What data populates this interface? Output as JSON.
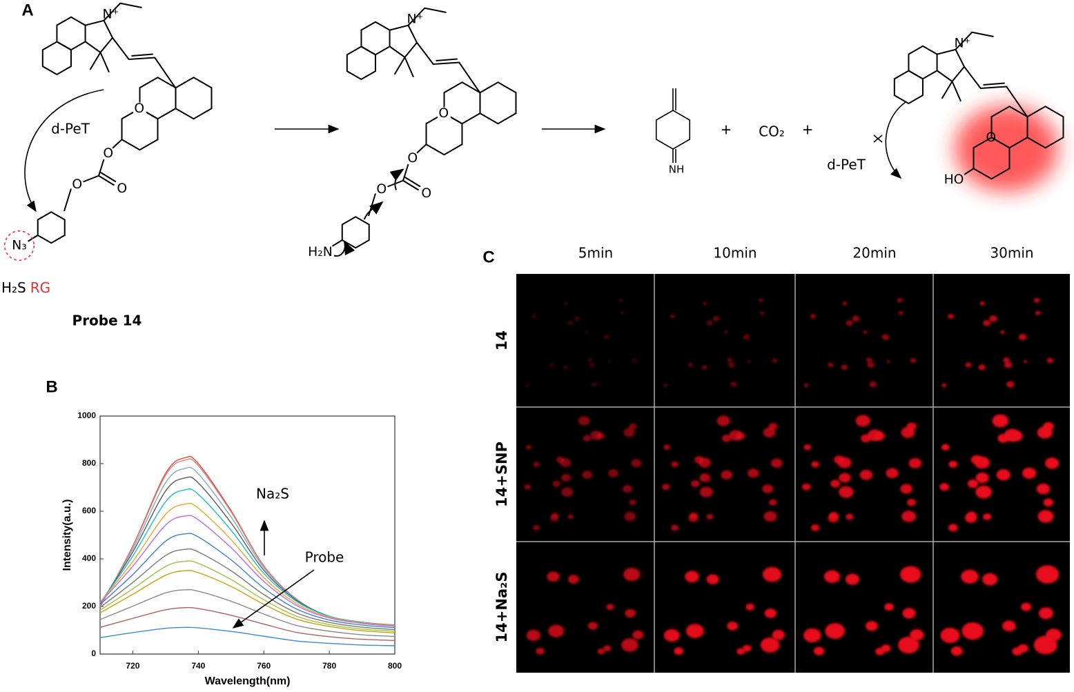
{
  "panel_a": {
    "label": "A",
    "probe": {
      "atoms": [
        "N⁺",
        "O",
        "O",
        "O",
        "O",
        "N₃"
      ],
      "pet_label": "d-PeT",
      "reactive_group": {
        "analyte": "H₂S",
        "tag": "RG"
      },
      "name": "Probe 14"
    },
    "intermediate": {
      "atoms": [
        "N⁺",
        "O",
        "O",
        "O",
        "O",
        "H₂N"
      ]
    },
    "products": {
      "imine": "NH",
      "plus_1": "+",
      "co2": "CO₂",
      "plus_2": "+",
      "fluorophore": {
        "atoms": [
          "N⁺",
          "O",
          "HO"
        ],
        "pet_label": "d-PeT"
      }
    }
  },
  "chart_data": {
    "type": "line",
    "panel_label": "B",
    "xlabel": "Wavelength(nm)",
    "ylabel": "Intensity(a.u.)",
    "annotations": [
      "Na₂S",
      "Probe"
    ],
    "x": [
      710,
      720,
      730,
      736,
      740,
      750,
      760,
      770,
      780,
      790,
      800
    ],
    "xlim": [
      710,
      800
    ],
    "xticks": [
      720,
      740,
      760,
      780,
      800
    ],
    "ylim": [
      0,
      1000
    ],
    "yticks": [
      0,
      200,
      400,
      600,
      800,
      1000
    ],
    "series": [
      {
        "color": "#e8413c",
        "values": [
          198,
          454,
          759,
          825,
          800,
          602,
          371,
          231,
          157,
          132,
          120
        ]
      },
      {
        "color": "#c98a7e",
        "values": [
          200,
          451,
          751,
          815,
          791,
          597,
          369,
          231,
          157,
          133,
          120
        ]
      },
      {
        "color": "#86a9c6",
        "values": [
          206,
          441,
          720,
          780,
          757,
          576,
          362,
          229,
          158,
          133,
          121
        ]
      },
      {
        "color": "#5a5a5a",
        "values": [
          211,
          429,
          685,
          740,
          719,
          551,
          352,
          226,
          159,
          134,
          122
        ]
      },
      {
        "color": "#18bcd0",
        "values": [
          215,
          412,
          640,
          690,
          671,
          520,
          339,
          221,
          159,
          134,
          121
        ]
      },
      {
        "color": "#e8a820",
        "values": [
          217,
          389,
          587,
          630,
          613,
          481,
          321,
          212,
          156,
          132,
          120
        ]
      },
      {
        "color": "#c065e0",
        "values": [
          215,
          369,
          542,
          580,
          564,
          447,
          305,
          204,
          152,
          129,
          117
        ]
      },
      {
        "color": "#3b7fd4",
        "values": [
          208,
          334,
          474,
          505,
          492,
          396,
          277,
          189,
          143,
          122,
          111
        ]
      },
      {
        "color": "#777777",
        "values": [
          196,
          301,
          414,
          440,
          429,
          350,
          250,
          173,
          133,
          113,
          103
        ]
      },
      {
        "color": "#9ac63a",
        "values": [
          184,
          274,
          368,
          390,
          381,
          313,
          228,
          159,
          124,
          105,
          96
        ]
      },
      {
        "color": "#c8a010",
        "values": [
          173,
          251,
          331,
          350,
          342,
          284,
          209,
          147,
          116,
          98,
          89
        ]
      },
      {
        "color": "#8a8a8a",
        "values": [
          145,
          201,
          257,
          270,
          264,
          222,
          168,
          120,
          96,
          81,
          74
        ]
      },
      {
        "color": "#b06060",
        "values": [
          112,
          150,
          186,
          195,
          191,
          163,
          126,
          91,
          73,
          62,
          57
        ]
      },
      {
        "color": "#3a8ad8",
        "values": [
          69,
          90,
          108,
          112,
          110,
          95,
          75,
          55,
          45,
          38,
          35
        ]
      }
    ]
  },
  "panel_c": {
    "label": "C",
    "columns": [
      "5min",
      "10min",
      "20min",
      "30min"
    ],
    "rows": [
      "14",
      "14+SNP",
      "14+Na₂S"
    ]
  }
}
